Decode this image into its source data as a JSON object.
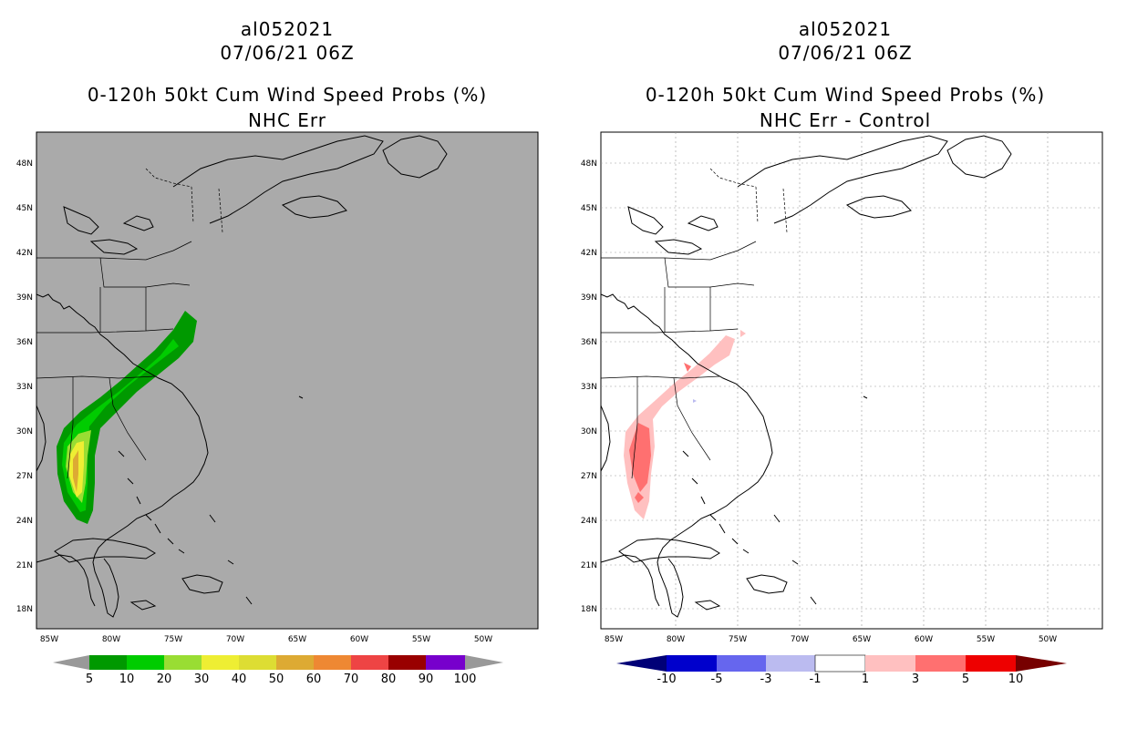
{
  "left_panel": {
    "storm_id": "al052021",
    "datetime": "07/06/21 06Z",
    "product": "0-120h 50kt Cum Wind Speed Probs (%)",
    "subtitle": "NHC Err",
    "colorbar_labels": [
      "5",
      "10",
      "20",
      "30",
      "40",
      "50",
      "60",
      "70",
      "80",
      "90",
      "100"
    ],
    "colorbar_colors": [
      "#009900",
      "#00cc00",
      "#99dd33",
      "#eeee33",
      "#dddd33",
      "#ddaa33",
      "#ee8833",
      "#ee4444",
      "#990000",
      "#7700cc"
    ]
  },
  "right_panel": {
    "storm_id": "al052021",
    "datetime": "07/06/21 06Z",
    "product": "0-120h 50kt Cum Wind Speed Probs (%)",
    "subtitle": "NHC Err - Control",
    "colorbar_labels": [
      "-10",
      "-5",
      "-3",
      "-1",
      "1",
      "3",
      "5",
      "10"
    ],
    "colorbar_colors": [
      "#0000cc",
      "#6666ee",
      "#bbbbf0",
      "#ffffff",
      "#ffc0c0",
      "#ff7070",
      "#ee0000"
    ]
  },
  "axes": {
    "lat_labels": [
      "48N",
      "45N",
      "42N",
      "39N",
      "36N",
      "33N",
      "30N",
      "27N",
      "24N",
      "21N",
      "18N"
    ],
    "lon_labels": [
      "85W",
      "80W",
      "75W",
      "70W",
      "65W",
      "60W",
      "55W",
      "50W"
    ]
  },
  "colors": {
    "left_background": "#aaaaaa",
    "right_background": "#ffffff"
  }
}
